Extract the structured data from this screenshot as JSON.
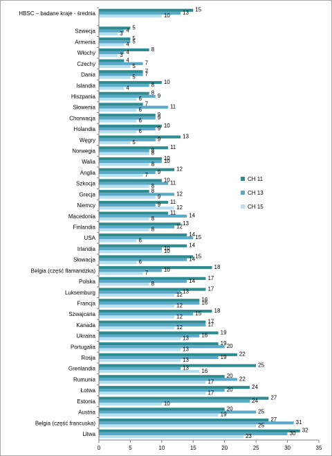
{
  "chart_data": {
    "type": "bar",
    "orientation": "horizontal",
    "title": "",
    "xlabel": "",
    "ylabel": "",
    "xlim": [
      0,
      35
    ],
    "xticks": [
      0,
      5,
      10,
      15,
      20,
      25,
      30,
      35
    ],
    "grid": false,
    "legend_position": "right",
    "categories": [
      "HBSC – badane kraje - średnia",
      "Szwecja",
      "Armenia",
      "Włochy",
      "Czechy",
      "Dania",
      "Islandia",
      "Hiszpania",
      "Słowenia",
      "Chorwacja",
      "Holandia",
      "Węgry",
      "Norwegia",
      "Walia",
      "Anglia",
      "Szkocja",
      "Grecja",
      "Niemcy",
      "Macedonia",
      "Finlandia",
      "USA",
      "Irlandia",
      "Słowacja",
      "Belgia (część flamandzka)",
      "Polska",
      "Luksemburg",
      "Francja",
      "Szwajcaria",
      "Kanada",
      "Ukraina",
      "Portugalia",
      "Rosja",
      "Grenlandia",
      "Rumunia",
      "Łotwa",
      "Estonia",
      "Austria",
      "Belgia (część francuska)",
      "Litwa"
    ],
    "series": [
      {
        "name": "CH 11",
        "color": "#2e8b8f",
        "values": [
          15,
          5,
          5,
          8,
          4,
          7,
          10,
          8,
          7,
          9,
          10,
          13,
          11,
          10,
          12,
          10,
          8,
          11,
          11,
          13,
          14,
          14,
          15,
          18,
          17,
          17,
          16,
          18,
          17,
          19,
          19,
          22,
          25,
          20,
          24,
          27,
          20,
          27,
          32
        ]
      },
      {
        "name": "CH 13",
        "color": "#5aa9c8",
        "values": [
          13,
          4,
          5,
          4,
          7,
          7,
          8,
          9,
          11,
          9,
          9,
          9,
          8,
          10,
          9,
          11,
          12,
          9,
          14,
          12,
          15,
          10,
          14,
          10,
          14,
          13,
          16,
          15,
          17,
          16,
          20,
          19,
          13,
          22,
          20,
          24,
          25,
          31,
          30
        ]
      },
      {
        "name": "CH 15",
        "color": "#b8dff0",
        "values": [
          10,
          3,
          4,
          3,
          5,
          5,
          4,
          6,
          6,
          6,
          6,
          5,
          8,
          8,
          7,
          8,
          9,
          12,
          8,
          8,
          6,
          10,
          6,
          7,
          8,
          12,
          12,
          12,
          12,
          13,
          13,
          13,
          16,
          17,
          17,
          10,
          19,
          25,
          23
        ]
      }
    ]
  }
}
